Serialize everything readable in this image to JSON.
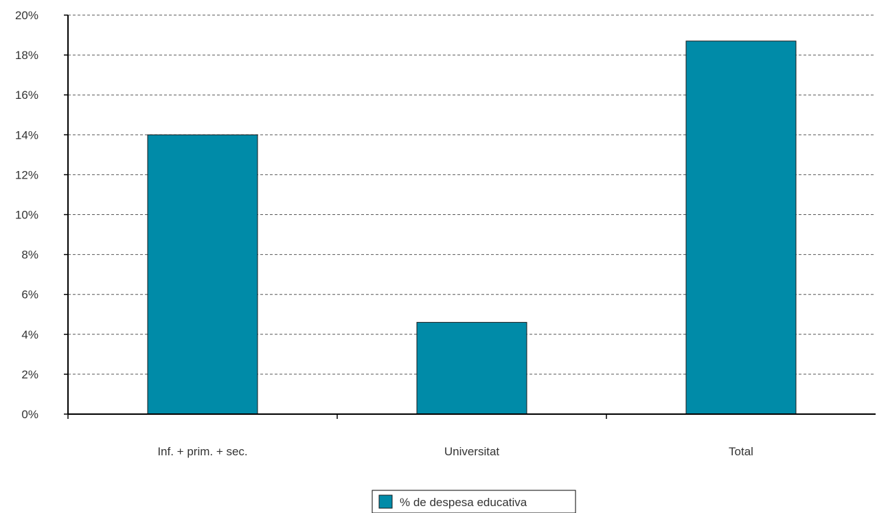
{
  "chart_data": {
    "type": "bar",
    "categories": [
      "Inf. + prim. + sec.",
      "Universitat",
      "Total"
    ],
    "series": [
      {
        "name": "% de despesa educativa",
        "values": [
          14.0,
          4.6,
          18.7
        ]
      }
    ],
    "ylim": [
      0,
      20
    ],
    "yticks": [
      "0%",
      "2%",
      "4%",
      "6%",
      "8%",
      "10%",
      "12%",
      "14%",
      "16%",
      "18%",
      "20%"
    ],
    "grid": true,
    "legend_position": "bottom-center",
    "colors": {
      "bar": "#008ba8",
      "bar_stroke": "#1a1a1a",
      "grid": "#555555",
      "axis": "#000000"
    }
  }
}
